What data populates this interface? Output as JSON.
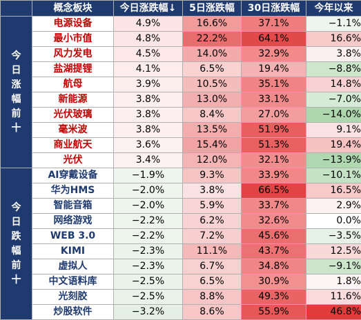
{
  "colors": {
    "header_bg": "#1f3a6e",
    "gain_text": "#c00000",
    "loss_text": "#1f3a6e"
  },
  "headers": [
    "概念板块",
    "今日涨跌幅↓",
    "5日涨跌幅",
    "30日涨跌幅",
    "今年以来"
  ],
  "groups": [
    {
      "label": "今日涨幅前十",
      "chars": [
        "今",
        "日",
        "涨",
        "幅",
        "前",
        "十"
      ],
      "tone": "up"
    },
    {
      "label": "今日跌幅前十",
      "chars": [
        "今",
        "日",
        "跌",
        "幅",
        "前",
        "十"
      ],
      "tone": "down"
    }
  ],
  "rows": [
    {
      "name": "电源设备",
      "today": "4.9%",
      "d5": "16.6%",
      "d30": "37.1%",
      "ytd": "−1.1%",
      "today_c": "#fde5e5",
      "d5_c": "#f19b9b",
      "d30_c": "#f07d7d",
      "ytd_c": "#eef5ee"
    },
    {
      "name": "最小市值",
      "today": "4.8%",
      "d5": "22.2%",
      "d30": "64.1%",
      "ytd": "16.6%",
      "today_c": "#fde6e6",
      "d5_c": "#ea6d6d",
      "d30_c": "#e24a4a",
      "ytd_c": "#f7caca"
    },
    {
      "name": "风力发电",
      "today": "4.5%",
      "d5": "14.0%",
      "d30": "32.9%",
      "ytd": "3.8%",
      "today_c": "#fde8e8",
      "d5_c": "#f3aaaa",
      "d30_c": "#f28a8a",
      "ytd_c": "#fcefef"
    },
    {
      "name": "盐湖提锂",
      "today": "4.1%",
      "d5": "6.5%",
      "d30": "19.4%",
      "ytd": "−8.8%",
      "today_c": "#fdecec",
      "d5_c": "#f9d2d2",
      "d30_c": "#f6b2b2",
      "ytd_c": "#cde7cd"
    },
    {
      "name": "航母",
      "today": "3.9%",
      "d5": "10.5%",
      "d30": "35.1%",
      "ytd": "14.8%",
      "today_c": "#fdeeee",
      "d5_c": "#f5bcbc",
      "d30_c": "#f08383",
      "ytd_c": "#f8d2d2"
    },
    {
      "name": "新能源",
      "today": "3.8%",
      "d5": "13.0%",
      "d30": "33.1%",
      "ytd": "−7.0%",
      "today_c": "#fdefef",
      "d5_c": "#f3afaf",
      "d30_c": "#f18a8a",
      "ytd_c": "#d6ebd6"
    },
    {
      "name": "光伏玻璃",
      "today": "3.8%",
      "d5": "8.4%",
      "d30": "27.0%",
      "ytd": "−14.0%",
      "today_c": "#fdefef",
      "d5_c": "#f8c8c8",
      "d30_c": "#f39e9e",
      "ytd_c": "#aed7ae"
    },
    {
      "name": "毫米波",
      "today": "3.8%",
      "d5": "13.5%",
      "d30": "51.9%",
      "ytd": "9.1%",
      "today_c": "#fdefef",
      "d5_c": "#f3adad",
      "d30_c": "#e85f5f",
      "ytd_c": "#fbe2e2"
    },
    {
      "name": "商业航天",
      "today": "3.6%",
      "d5": "15.4%",
      "d30": "51.3%",
      "ytd": "19.4%",
      "today_c": "#fdf1f1",
      "d5_c": "#f2a2a2",
      "d30_c": "#e86060",
      "ytd_c": "#f6c2c2"
    },
    {
      "name": "光伏",
      "today": "3.4%",
      "d5": "12.0%",
      "d30": "32.1%",
      "ytd": "−13.9%",
      "today_c": "#fdf2f2",
      "d5_c": "#f4b4b4",
      "d30_c": "#f28d8d",
      "ytd_c": "#b0d8b0"
    },
    {
      "name": "AI穿戴设备",
      "today": "−1.9%",
      "d5": "9.3%",
      "d30": "33.9%",
      "ytd": "−10.1%",
      "today_c": "#eef5ee",
      "d5_c": "#f7c3c3",
      "d30_c": "#f18888",
      "ytd_c": "#c4e2c4"
    },
    {
      "name": "华为HMS",
      "today": "−2.0%",
      "d5": "3.8%",
      "d30": "66.5%",
      "ytd": "16.5%",
      "today_c": "#edf5ed",
      "d5_c": "#fbe2e2",
      "d30_c": "#e04444",
      "ytd_c": "#f7caca"
    },
    {
      "name": "智能音箱",
      "today": "−2.0%",
      "d5": "5.9%",
      "d30": "33.7%",
      "ytd": "2.9%",
      "today_c": "#edf5ed",
      "d5_c": "#f9d5d5",
      "d30_c": "#f18888",
      "ytd_c": "#fcf2f2"
    },
    {
      "name": "网络游戏",
      "today": "−2.2%",
      "d5": "6.2%",
      "d30": "32.6%",
      "ytd": "0.0%",
      "today_c": "#ecf4ec",
      "d5_c": "#f9d3d3",
      "d30_c": "#f28b8b",
      "ytd_c": "#ffffff"
    },
    {
      "name": "WEB 3.0",
      "today": "−2.2%",
      "d5": "7.2%",
      "d30": "45.6%",
      "ytd": "−3.5%",
      "today_c": "#ecf4ec",
      "d5_c": "#f8cece",
      "d30_c": "#ea6e6e",
      "ytd_c": "#e7f2e7"
    },
    {
      "name": "KIMI",
      "today": "−2.3%",
      "d5": "11.1%",
      "d30": "43.7%",
      "ytd": "12.5%",
      "today_c": "#ebf4eb",
      "d5_c": "#f5b9b9",
      "d30_c": "#eb7272",
      "ytd_c": "#f9d8d8"
    },
    {
      "name": "虚拟人",
      "today": "−2.3%",
      "d5": "6.7%",
      "d30": "34.8%",
      "ytd": "−9.1%",
      "today_c": "#ebf4eb",
      "d5_c": "#f9d0d0",
      "d30_c": "#f08585",
      "ytd_c": "#cbe6cb"
    },
    {
      "name": "中文语料库",
      "today": "−2.5%",
      "d5": "6.5%",
      "d30": "30.9%",
      "ytd": "1.8%",
      "today_c": "#e9f3e9",
      "d5_c": "#f9d2d2",
      "d30_c": "#f29090",
      "ytd_c": "#fdf5f5"
    },
    {
      "name": "光刻胶",
      "today": "−2.5%",
      "d5": "8.8%",
      "d30": "49.3%",
      "ytd": "11.6%",
      "today_c": "#e9f3e9",
      "d5_c": "#f7c5c5",
      "d30_c": "#e96464",
      "ytd_c": "#f9dbdb"
    },
    {
      "name": "炒股软件",
      "today": "−3.2%",
      "d5": "8.6%",
      "d30": "55.9%",
      "ytd": "46.8%",
      "today_c": "#e3f0e3",
      "d5_c": "#f8c7c7",
      "d30_c": "#e65757",
      "ytd_c": "#e03c3c"
    }
  ]
}
